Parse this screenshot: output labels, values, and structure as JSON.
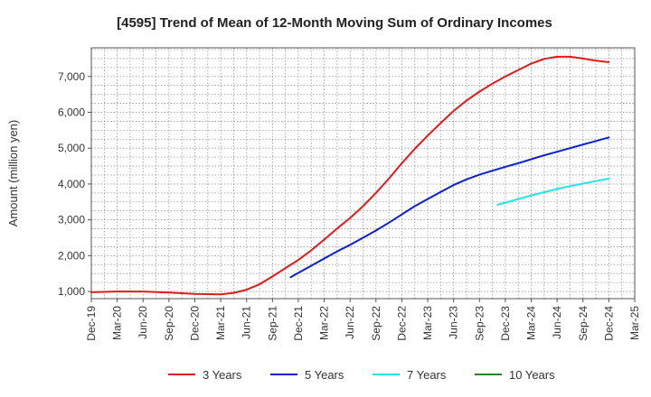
{
  "chart_data": {
    "type": "line",
    "title": "[4595]  Trend of Mean of 12-Month Moving Sum of Ordinary Incomes",
    "xlabel": "",
    "ylabel": "Amount (million yen)",
    "categories": [
      "Dec-19",
      "Mar-20",
      "Jun-20",
      "Sep-20",
      "Dec-20",
      "Mar-21",
      "Jun-21",
      "Sep-21",
      "Dec-21",
      "Mar-22",
      "Jun-22",
      "Sep-22",
      "Dec-22",
      "Mar-23",
      "Jun-23",
      "Sep-23",
      "Dec-23",
      "Mar-24",
      "Jun-24",
      "Sep-24",
      "Dec-24",
      "Mar-25"
    ],
    "ylim": [
      800,
      7800
    ],
    "yticks": [
      1000,
      2000,
      3000,
      4000,
      5000,
      6000,
      7000
    ],
    "ytick_labels": [
      "1,000",
      "2,000",
      "3,000",
      "4,000",
      "5,000",
      "6,000",
      "7,000"
    ],
    "grid": true,
    "legend_position": "bottom",
    "series": [
      {
        "name": "3 Years",
        "color": "#e31a1c",
        "points": [
          [
            0,
            980
          ],
          [
            1,
            1000
          ],
          [
            2,
            1000
          ],
          [
            3,
            970
          ],
          [
            4,
            930
          ],
          [
            5,
            920
          ],
          [
            5.5,
            960
          ],
          [
            6,
            1050
          ],
          [
            6.5,
            1200
          ],
          [
            7,
            1420
          ],
          [
            7.5,
            1650
          ],
          [
            8,
            1880
          ],
          [
            8.5,
            2150
          ],
          [
            9,
            2450
          ],
          [
            9.5,
            2760
          ],
          [
            10,
            3050
          ],
          [
            10.5,
            3380
          ],
          [
            11,
            3750
          ],
          [
            11.5,
            4150
          ],
          [
            12,
            4580
          ],
          [
            12.5,
            4980
          ],
          [
            13,
            5350
          ],
          [
            13.5,
            5700
          ],
          [
            14,
            6040
          ],
          [
            14.5,
            6330
          ],
          [
            15,
            6580
          ],
          [
            15.5,
            6800
          ],
          [
            16,
            7000
          ],
          [
            16.5,
            7180
          ],
          [
            17,
            7360
          ],
          [
            17.5,
            7490
          ],
          [
            18,
            7550
          ],
          [
            18.5,
            7550
          ],
          [
            19,
            7500
          ],
          [
            19.5,
            7440
          ],
          [
            20,
            7400
          ]
        ]
      },
      {
        "name": "5 Years",
        "color": "#0a1fd6",
        "points": [
          [
            7.7,
            1400
          ],
          [
            8,
            1520
          ],
          [
            8.5,
            1720
          ],
          [
            9,
            1920
          ],
          [
            9.5,
            2120
          ],
          [
            10,
            2300
          ],
          [
            10.5,
            2500
          ],
          [
            11,
            2700
          ],
          [
            11.5,
            2920
          ],
          [
            12,
            3150
          ],
          [
            12.5,
            3380
          ],
          [
            13,
            3580
          ],
          [
            13.5,
            3780
          ],
          [
            14,
            3970
          ],
          [
            14.5,
            4130
          ],
          [
            15,
            4260
          ],
          [
            15.5,
            4370
          ],
          [
            16,
            4480
          ],
          [
            16.5,
            4580
          ],
          [
            17,
            4690
          ],
          [
            17.5,
            4800
          ],
          [
            18,
            4900
          ],
          [
            18.5,
            5000
          ],
          [
            19,
            5100
          ],
          [
            19.5,
            5200
          ],
          [
            20,
            5300
          ]
        ]
      },
      {
        "name": "7 Years",
        "color": "#22e5e8",
        "points": [
          [
            15.7,
            3420
          ],
          [
            16,
            3480
          ],
          [
            16.5,
            3580
          ],
          [
            17,
            3680
          ],
          [
            17.5,
            3770
          ],
          [
            18,
            3860
          ],
          [
            18.5,
            3940
          ],
          [
            19,
            4010
          ],
          [
            19.5,
            4080
          ],
          [
            20,
            4150
          ]
        ]
      },
      {
        "name": "10 Years",
        "color": "#1a8a1a",
        "points": []
      }
    ]
  }
}
